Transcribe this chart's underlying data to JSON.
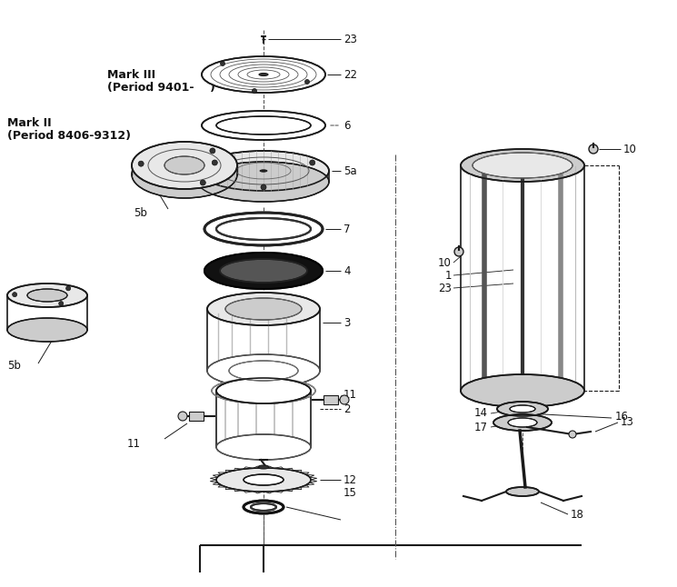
{
  "bg_color": "#ffffff",
  "fig_width": 7.45,
  "fig_height": 6.46,
  "dpi": 100,
  "labels": {
    "mark_iii": "Mark III",
    "mark_iii_period": "(Period 9401-    )",
    "mark_ii": "Mark II",
    "mark_ii_period": "(Period 8406-9312)"
  },
  "line_color": "#1a1a1a",
  "text_color": "#111111",
  "gray_light": "#e8e8e8",
  "gray_mid": "#cccccc",
  "gray_dark": "#888888",
  "black_ring": "#1a1a1a",
  "white": "#ffffff"
}
